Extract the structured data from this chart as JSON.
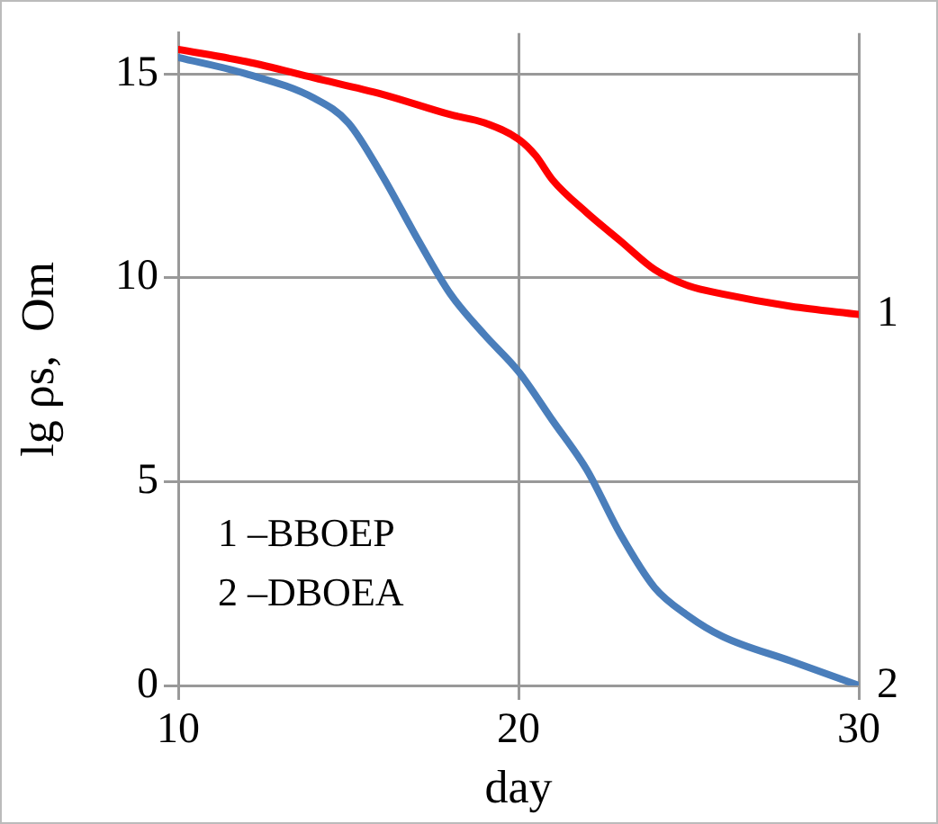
{
  "chart_data": {
    "type": "line",
    "xlabel": "day",
    "ylabel": "lg ρs,  Om",
    "xlim": [
      10,
      30
    ],
    "xticks": [
      10,
      20,
      30
    ],
    "ylim": [
      0,
      16
    ],
    "yticks": [
      0,
      5,
      10,
      15
    ],
    "grid": true,
    "legend": false,
    "marker": "none",
    "line_style": "solid",
    "annotations": [
      "1 –BBOEP",
      "2 –DBOEA"
    ],
    "series": [
      {
        "name": "1",
        "color": "#ff0000",
        "x": [
          10,
          12,
          14,
          16,
          18,
          19,
          20,
          20.5,
          21,
          22,
          23,
          24,
          25,
          26,
          28,
          30
        ],
        "values": [
          15.6,
          15.3,
          14.9,
          14.5,
          14.0,
          13.8,
          13.4,
          13.0,
          12.4,
          11.6,
          10.9,
          10.2,
          9.8,
          9.6,
          9.3,
          9.1
        ]
      },
      {
        "name": "2",
        "color": "#4a7ebb",
        "x": [
          10,
          12,
          14,
          15,
          16,
          17,
          18,
          19,
          20,
          21,
          22,
          23,
          24,
          25,
          26,
          28,
          30
        ],
        "values": [
          15.4,
          15.0,
          14.4,
          13.8,
          12.5,
          11.0,
          9.6,
          8.6,
          7.7,
          6.5,
          5.3,
          3.7,
          2.4,
          1.7,
          1.2,
          0.6,
          0
        ]
      }
    ]
  }
}
